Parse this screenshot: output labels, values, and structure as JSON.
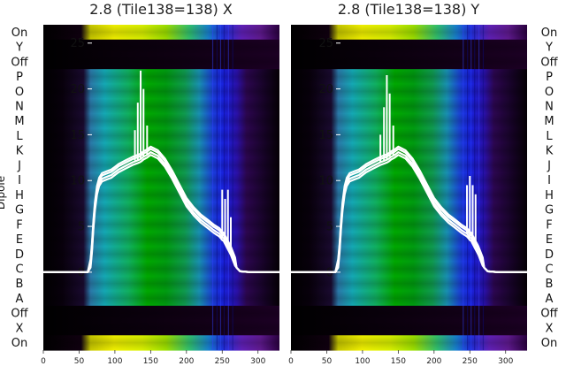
{
  "chart_data": [
    {
      "type": "heatmap",
      "title": "2.8 (Tile138=138) X",
      "ylabel": "Dipole",
      "dipole_labels": [
        "On",
        "X",
        "Off",
        "A",
        "B",
        "C",
        "D",
        "E",
        "F",
        "G",
        "H",
        "I",
        "J",
        "K",
        "L",
        "M",
        "N",
        "O",
        "P",
        "Off",
        "Y",
        "On"
      ],
      "xticks": [
        0,
        50,
        100,
        150,
        200,
        250,
        300
      ],
      "xlim": [
        0,
        330
      ],
      "overlay": {
        "type": "line",
        "color": "#ffffff",
        "yticks": [
          0,
          5,
          10,
          15,
          20,
          25
        ],
        "ylim": [
          -8.5,
          27
        ],
        "x": [
          0,
          50,
          62,
          66,
          68,
          70,
          72,
          75,
          78,
          82,
          88,
          95,
          105,
          115,
          125,
          132,
          135,
          137,
          140,
          145,
          150,
          160,
          170,
          180,
          190,
          200,
          210,
          220,
          230,
          238,
          242,
          246,
          248,
          250,
          252,
          254,
          256,
          258,
          260,
          262,
          264,
          266,
          268,
          270,
          275,
          290,
          310,
          330
        ],
        "y": [
          0,
          0,
          0,
          0.8,
          2.5,
          5.0,
          7.0,
          8.8,
          9.7,
          10.2,
          10.4,
          10.6,
          11.2,
          11.6,
          12.0,
          12.2,
          12.3,
          12.4,
          12.6,
          12.8,
          13.1,
          12.7,
          11.8,
          10.5,
          9.0,
          7.5,
          6.5,
          5.7,
          5.1,
          4.6,
          4.4,
          4.2,
          4.0,
          3.8,
          3.7,
          3.4,
          3.1,
          2.8,
          2.5,
          2.2,
          1.8,
          1.4,
          1.0,
          0.5,
          0.1,
          0,
          0,
          0
        ]
      },
      "spikes": [
        {
          "x": 128,
          "y": 15.5
        },
        {
          "x": 132,
          "y": 18.5
        },
        {
          "x": 136,
          "y": 22.0
        },
        {
          "x": 140,
          "y": 20.0
        },
        {
          "x": 145,
          "y": 16.0
        },
        {
          "x": 250,
          "y": 9.0
        },
        {
          "x": 254,
          "y": 8.0
        },
        {
          "x": 258,
          "y": 9.0
        },
        {
          "x": 262,
          "y": 6.0
        }
      ]
    },
    {
      "type": "heatmap",
      "title": "2.8 (Tile138=138) Y",
      "ylabel": "Dipole",
      "dipole_labels": [
        "On",
        "X",
        "Off",
        "A",
        "B",
        "C",
        "D",
        "E",
        "F",
        "G",
        "H",
        "I",
        "J",
        "K",
        "L",
        "M",
        "N",
        "O",
        "P",
        "Off",
        "Y",
        "On"
      ],
      "xticks": [
        0,
        50,
        100,
        150,
        200,
        250,
        300
      ],
      "xlim": [
        0,
        330
      ],
      "overlay": {
        "type": "line",
        "color": "#ffffff",
        "yticks": [
          0,
          5,
          10,
          15,
          20,
          25
        ],
        "ylim": [
          -8.5,
          27
        ],
        "x": [
          0,
          50,
          62,
          66,
          68,
          70,
          72,
          75,
          78,
          82,
          88,
          95,
          105,
          115,
          125,
          132,
          135,
          137,
          140,
          145,
          150,
          160,
          170,
          180,
          190,
          200,
          210,
          220,
          230,
          238,
          242,
          246,
          248,
          250,
          252,
          254,
          256,
          258,
          260,
          262,
          264,
          266,
          268,
          270,
          275,
          290,
          310,
          330
        ],
        "y": [
          0,
          0,
          0,
          0.8,
          2.5,
          5.0,
          7.0,
          8.8,
          9.7,
          10.2,
          10.4,
          10.6,
          11.2,
          11.6,
          12.0,
          12.2,
          12.3,
          12.4,
          12.6,
          12.8,
          13.1,
          12.7,
          11.8,
          10.5,
          9.0,
          7.5,
          6.5,
          5.7,
          5.1,
          4.6,
          4.4,
          4.2,
          4.0,
          3.8,
          3.7,
          3.4,
          3.1,
          2.8,
          2.5,
          2.2,
          1.8,
          1.4,
          1.0,
          0.5,
          0.1,
          0,
          0,
          0
        ]
      },
      "spikes": [
        {
          "x": 125,
          "y": 15.0
        },
        {
          "x": 130,
          "y": 18.0
        },
        {
          "x": 134,
          "y": 21.5
        },
        {
          "x": 138,
          "y": 19.5
        },
        {
          "x": 143,
          "y": 16.0
        },
        {
          "x": 246,
          "y": 9.5
        },
        {
          "x": 250,
          "y": 10.5
        },
        {
          "x": 254,
          "y": 9.5
        },
        {
          "x": 258,
          "y": 8.5
        }
      ]
    }
  ]
}
